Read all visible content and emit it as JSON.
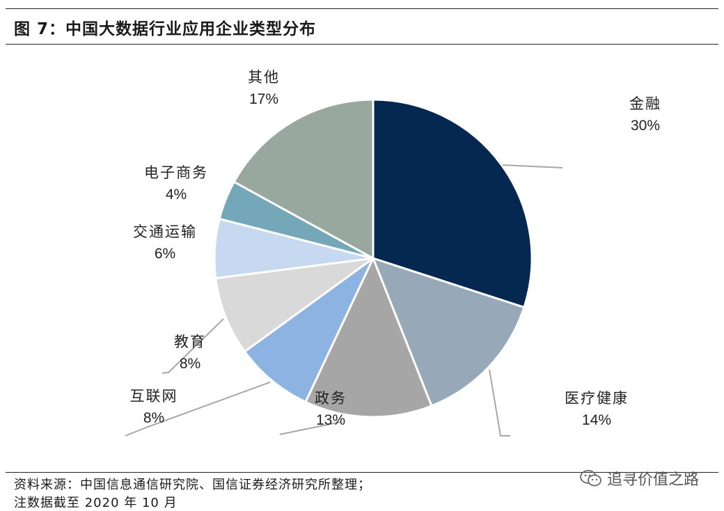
{
  "header": {
    "title": "图 7：中国大数据行业应用企业类型分布"
  },
  "chart_data": {
    "type": "pie",
    "title": "图 7：中国大数据行业应用企业类型分布",
    "slices": [
      {
        "label": "金融",
        "value": 30,
        "pct_label": "30%",
        "color": "#04284f"
      },
      {
        "label": "医疗健康",
        "value": 14,
        "pct_label": "14%",
        "color": "#97a9b8"
      },
      {
        "label": "政务",
        "value": 13,
        "pct_label": "13%",
        "color": "#a6a6a6"
      },
      {
        "label": "互联网",
        "value": 8,
        "pct_label": "8%",
        "color": "#8db3e2"
      },
      {
        "label": "教育",
        "value": 8,
        "pct_label": "8%",
        "color": "#d9d9d9"
      },
      {
        "label": "交通运输",
        "value": 6,
        "pct_label": "6%",
        "color": "#c6d9f1"
      },
      {
        "label": "电子商务",
        "value": 4,
        "pct_label": "4%",
        "color": "#74a8b8"
      },
      {
        "label": "其他",
        "value": 17,
        "pct_label": "17%",
        "color": "#98a89e"
      }
    ],
    "start": "12 o'clock",
    "direction": "clockwise"
  },
  "footer": {
    "source": "资料来源：中国信息通信研究院、国信证券经济研究所整理；",
    "note": "注数据截至 2020 年 10 月"
  },
  "watermark": {
    "text": "追寻价值之路",
    "icon": "wechat-icon"
  }
}
